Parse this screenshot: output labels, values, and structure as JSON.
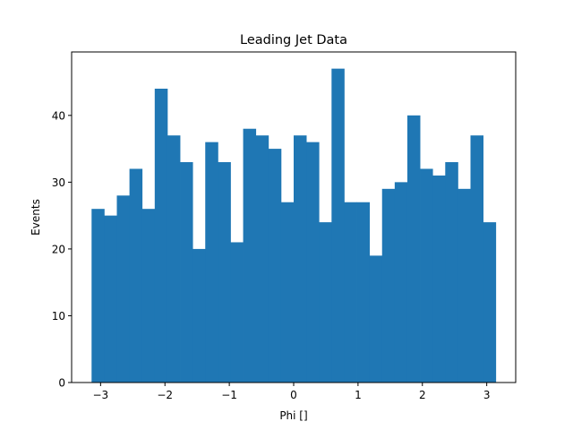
{
  "chart_data": {
    "type": "bar",
    "title": "Leading Jet Data",
    "xlabel": "Phi []",
    "ylabel": "Events",
    "bin_range": [
      -3.14,
      3.14
    ],
    "xlim": [
      -3.45,
      3.45
    ],
    "ylim": [
      0,
      49.5
    ],
    "xticks": [
      -3,
      -2,
      -1,
      0,
      1,
      2,
      3
    ],
    "xtick_labels": [
      "−3",
      "−2",
      "−1",
      "0",
      "1",
      "2",
      "3"
    ],
    "yticks": [
      0,
      10,
      20,
      30,
      40
    ],
    "ytick_labels": [
      "0",
      "10",
      "20",
      "30",
      "40"
    ],
    "values": [
      26,
      25,
      28,
      32,
      26,
      44,
      37,
      33,
      20,
      36,
      33,
      21,
      38,
      37,
      35,
      27,
      37,
      36,
      24,
      47,
      27,
      27,
      19,
      29,
      30,
      40,
      32,
      31,
      33,
      29,
      37,
      24
    ],
    "bar_color": "#1f77b4",
    "grid": false,
    "legend": "none"
  }
}
